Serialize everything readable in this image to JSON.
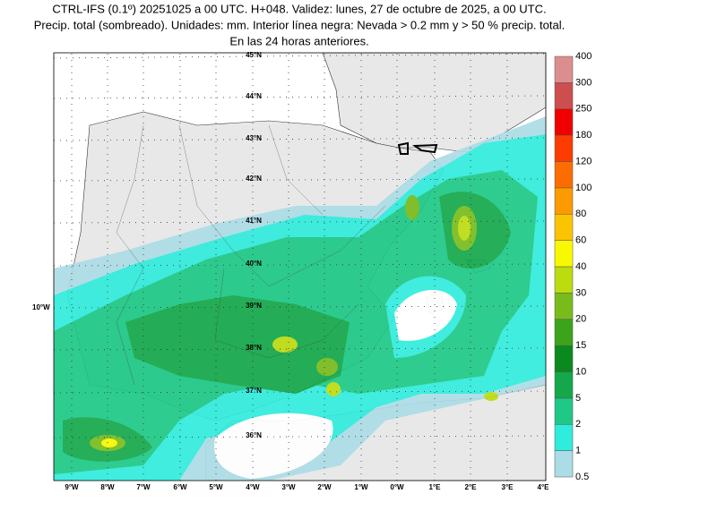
{
  "title": [
    "CTRL-IFS (0.1º) 20251025 a 00 UTC. H+048. Validez: lunes, 27 de octubre de 2025, a 00 UTC.",
    "Precip. total (sombreado). Unidades: mm. Interior línea negra: Nevada > 0.2 mm y > 50 % precip. total.",
    "En las 24 horas anteriores."
  ],
  "lat_labels": [
    "45°N",
    "44°N",
    "43°N",
    "42°N",
    "41°N",
    "40°N",
    "39°N",
    "38°N",
    "37°N",
    "36°N"
  ],
  "lon_side_label": "10°W",
  "lon_labels": [
    "9°W",
    "8°W",
    "7°W",
    "6°W",
    "5°W",
    "4°W",
    "3°W",
    "2°W",
    "1°W",
    "0°W",
    "1°E",
    "2°E",
    "3°E",
    "4°E"
  ],
  "colorbar": {
    "levels": [
      "0.5",
      "1",
      "2",
      "5",
      "10",
      "15",
      "20",
      "30",
      "40",
      "60",
      "80",
      "100",
      "120",
      "180",
      "250",
      "300",
      "400"
    ],
    "colors": [
      "#acdde6",
      "#30ecdc",
      "#1ec886",
      "#14a84a",
      "#0a8a1e",
      "#3ca41a",
      "#78bc1c",
      "#bcdc10",
      "#f8f800",
      "#fcc400",
      "#fc9a00",
      "#fc6c00",
      "#fc3c00",
      "#f00000",
      "#cc4e4e",
      "#dc8e8e",
      "#f0c4c4"
    ]
  }
}
